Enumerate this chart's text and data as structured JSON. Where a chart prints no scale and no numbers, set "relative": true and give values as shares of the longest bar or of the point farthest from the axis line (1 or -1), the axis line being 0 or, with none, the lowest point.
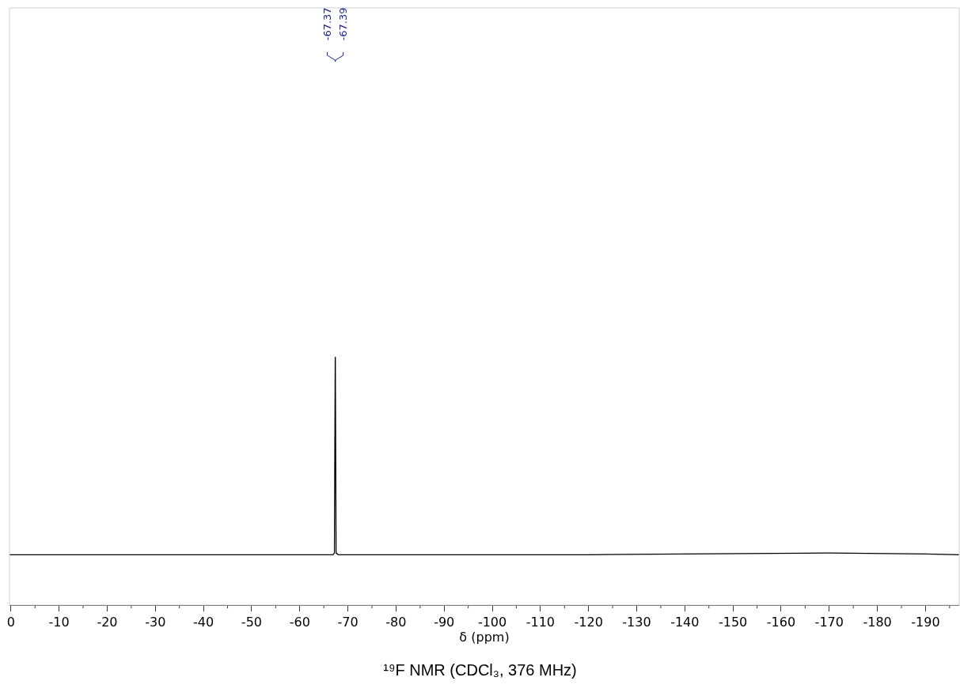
{
  "chart_data": {
    "type": "line",
    "title": "¹⁹F NMR (CDCl₃, 376 MHz)",
    "xlabel": "δ (ppm)",
    "relative": true,
    "x": [
      0.3,
      -60,
      -66.9,
      -67.2,
      -67.37,
      -67.38,
      -67.39,
      -67.55,
      -68,
      -120,
      -140,
      -170,
      -190,
      -197
    ],
    "series": [
      {
        "color": "#000000",
        "values": [
          0.203,
          0.203,
          0.203,
          0.21,
          1,
          0.98,
          1,
          0.21,
          0.203,
          0.203,
          0.206,
          0.21,
          0.206,
          0.203
        ]
      }
    ],
    "annotations": [
      {
        "text": "-67.37",
        "x": -67.37
      },
      {
        "text": "-67.39",
        "x": -67.39
      }
    ],
    "xlim": [
      0.3,
      -197
    ],
    "xticks": [
      0,
      {
        "value": -5,
        "label": null
      },
      -10,
      {
        "value": -15,
        "label": null
      },
      -20,
      {
        "value": -25,
        "label": null
      },
      -30,
      {
        "value": -35,
        "label": null
      },
      -40,
      {
        "value": -45,
        "label": null
      },
      -50,
      {
        "value": -55,
        "label": null
      },
      -60,
      {
        "value": -65,
        "label": null
      },
      -70,
      {
        "value": -75,
        "label": null
      },
      -80,
      {
        "value": -85,
        "label": null
      },
      -90,
      {
        "value": -95,
        "label": null
      },
      -100,
      {
        "value": -105,
        "label": null
      },
      -110,
      {
        "value": -115,
        "label": null
      },
      -120,
      {
        "value": -125,
        "label": null
      },
      -130,
      {
        "value": -135,
        "label": null
      },
      -140,
      {
        "value": -145,
        "label": null
      },
      -150,
      {
        "value": -155,
        "label": null
      },
      -160,
      {
        "value": -165,
        "label": null
      },
      -170,
      {
        "value": -175,
        "label": null
      },
      -180,
      {
        "value": -185,
        "label": null
      },
      -190,
      {
        "value": -195,
        "label": null
      }
    ],
    "tick_labels": "x",
    "grid": false,
    "marker": "none",
    "line_style": "solid"
  }
}
